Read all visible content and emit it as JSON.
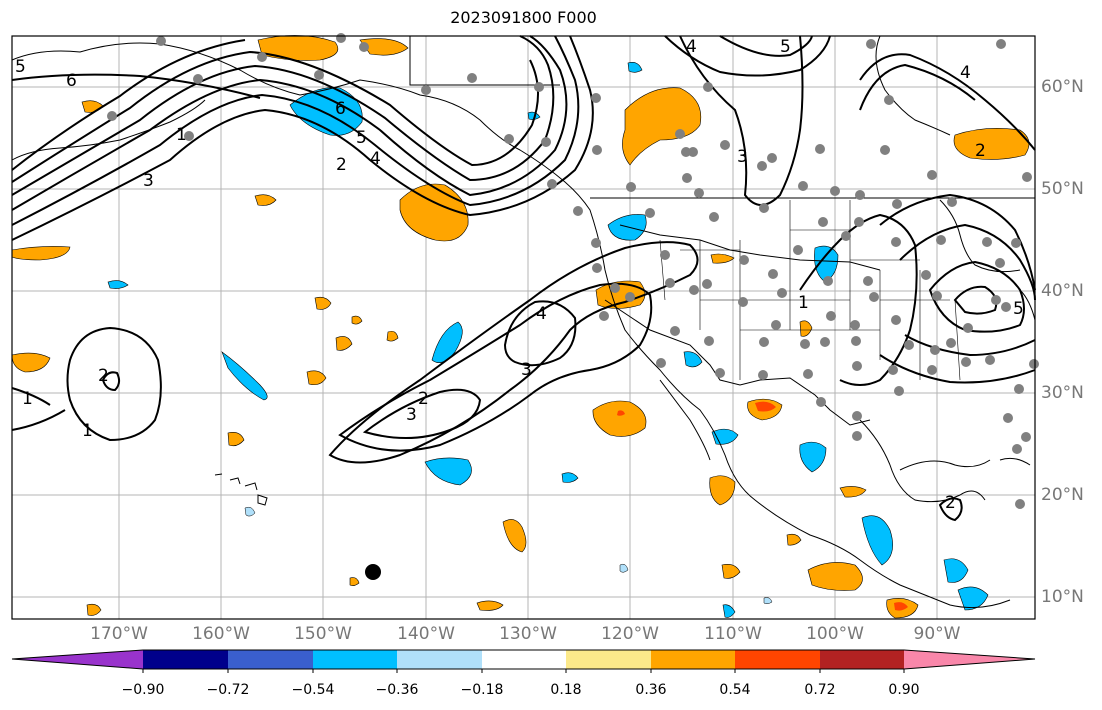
{
  "title": "2023091800 F000",
  "lat_labels": [
    "60°N",
    "50°N",
    "40°N",
    "30°N",
    "20°N",
    "10°N"
  ],
  "lon_labels": [
    "170°W",
    "160°W",
    "150°W",
    "140°W",
    "130°W",
    "120°W",
    "110°W",
    "100°W",
    "90°W"
  ],
  "contour_labels": [
    "5",
    "6",
    "6",
    "5",
    "4",
    "3",
    "2",
    "1",
    "2",
    "1",
    "1",
    "4",
    "3",
    "2",
    "3",
    "3",
    "4",
    "5",
    "2",
    "1",
    "5",
    "4",
    "2"
  ],
  "colorbar": {
    "tick_labels": [
      "−0.90",
      "−0.72",
      "−0.54",
      "−0.36",
      "−0.18",
      "0.18",
      "0.36",
      "0.54",
      "0.72",
      "0.90"
    ],
    "colors": [
      "#9933cc",
      "#00008b",
      "#3a5fcd",
      "#00bfff",
      "#b0e0fa",
      "#ffffff",
      "#fce98a",
      "#ffa500",
      "#ff4500",
      "#b22222",
      "#f987aa"
    ]
  },
  "colors": {
    "positive": "#ffa500",
    "positive_strong": "#ff4500",
    "negative": "#00bfff",
    "negative_light": "#b0e0fa",
    "stations": "#808080",
    "grid": "#b4b4b4"
  }
}
